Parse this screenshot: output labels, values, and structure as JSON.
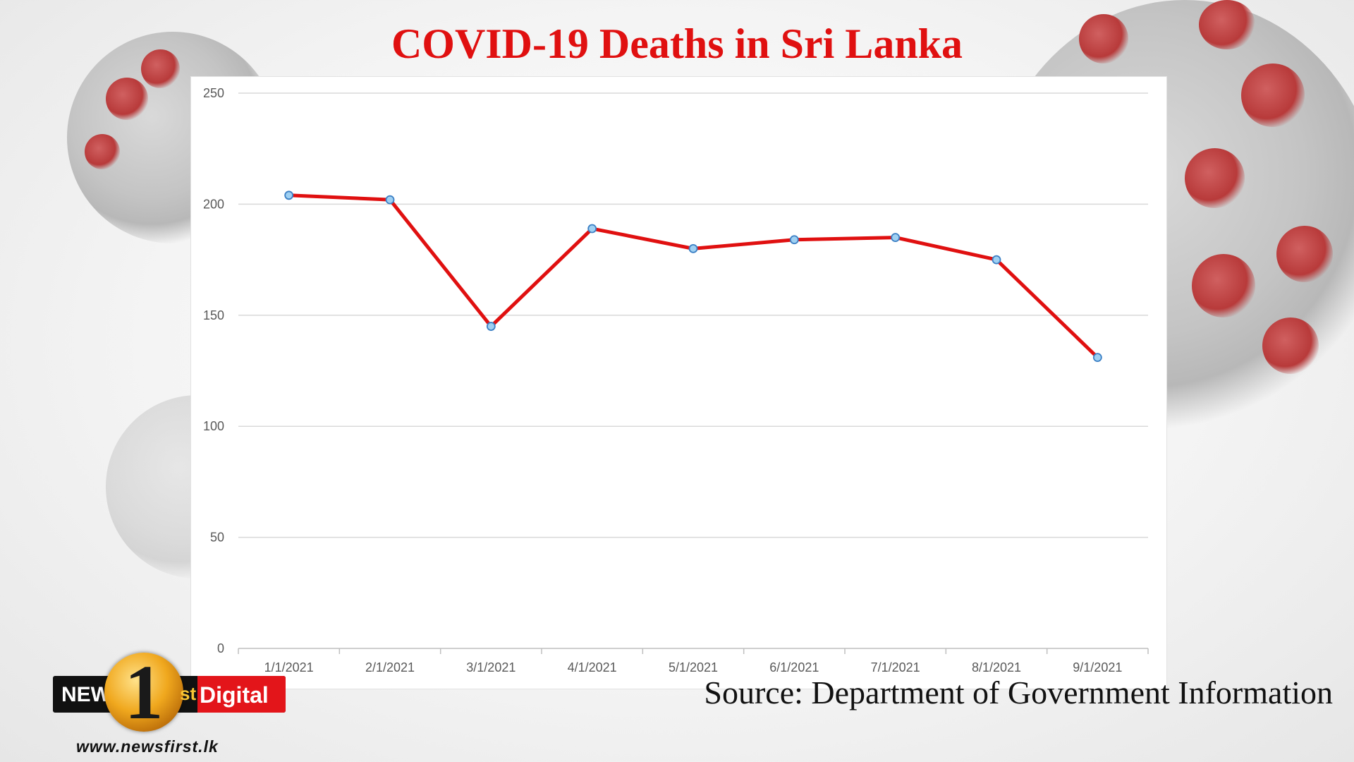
{
  "title": "COVID-19 Deaths in Sri Lanka",
  "source": "Source: Department of Government Information",
  "logo": {
    "news_text": "NEWS",
    "number": "1",
    "suffix": "st",
    "digital_text": "Digital",
    "website": "www.newsfirst.lk"
  },
  "colors": {
    "title": "#e01010",
    "line": "#e01010",
    "marker_fill": "#9fd0f2",
    "marker_stroke": "#3b7fc4",
    "grid": "#d9d9d9",
    "tick_text": "#595959"
  },
  "chart_data": {
    "type": "line",
    "title": "",
    "xlabel": "",
    "ylabel": "",
    "categories": [
      "1/1/2021",
      "2/1/2021",
      "3/1/2021",
      "4/1/2021",
      "5/1/2021",
      "6/1/2021",
      "7/1/2021",
      "8/1/2021",
      "9/1/2021"
    ],
    "values": [
      204,
      202,
      145,
      189,
      180,
      184,
      185,
      175,
      131
    ],
    "ylim": [
      0,
      250
    ],
    "yticks": [
      0,
      50,
      100,
      150,
      200,
      250
    ],
    "grid": true,
    "legend": "none",
    "markers": true
  }
}
